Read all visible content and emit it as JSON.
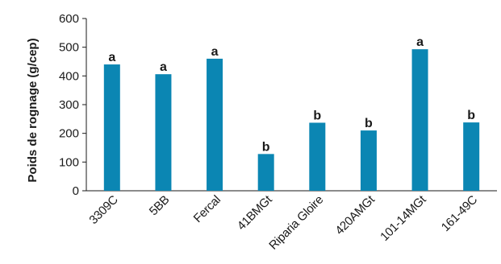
{
  "chart_data": {
    "type": "bar",
    "title": "",
    "xlabel": "",
    "ylabel": "Poids de rognage (g/cep)",
    "ylim": [
      0,
      600
    ],
    "yticks": [
      0,
      100,
      200,
      300,
      400,
      500,
      600
    ],
    "grid": false,
    "categories": [
      "3309C",
      "5BB",
      "Fercal",
      "41BMGt",
      "Riparia Gloire",
      "420AMGt",
      "101-14MGt",
      "161-49C"
    ],
    "values": [
      440,
      406,
      460,
      128,
      237,
      210,
      493,
      238
    ],
    "annotations": [
      "a",
      "a",
      "a",
      "b",
      "b",
      "b",
      "a",
      "b"
    ],
    "bar_color": "#0b86b3"
  }
}
